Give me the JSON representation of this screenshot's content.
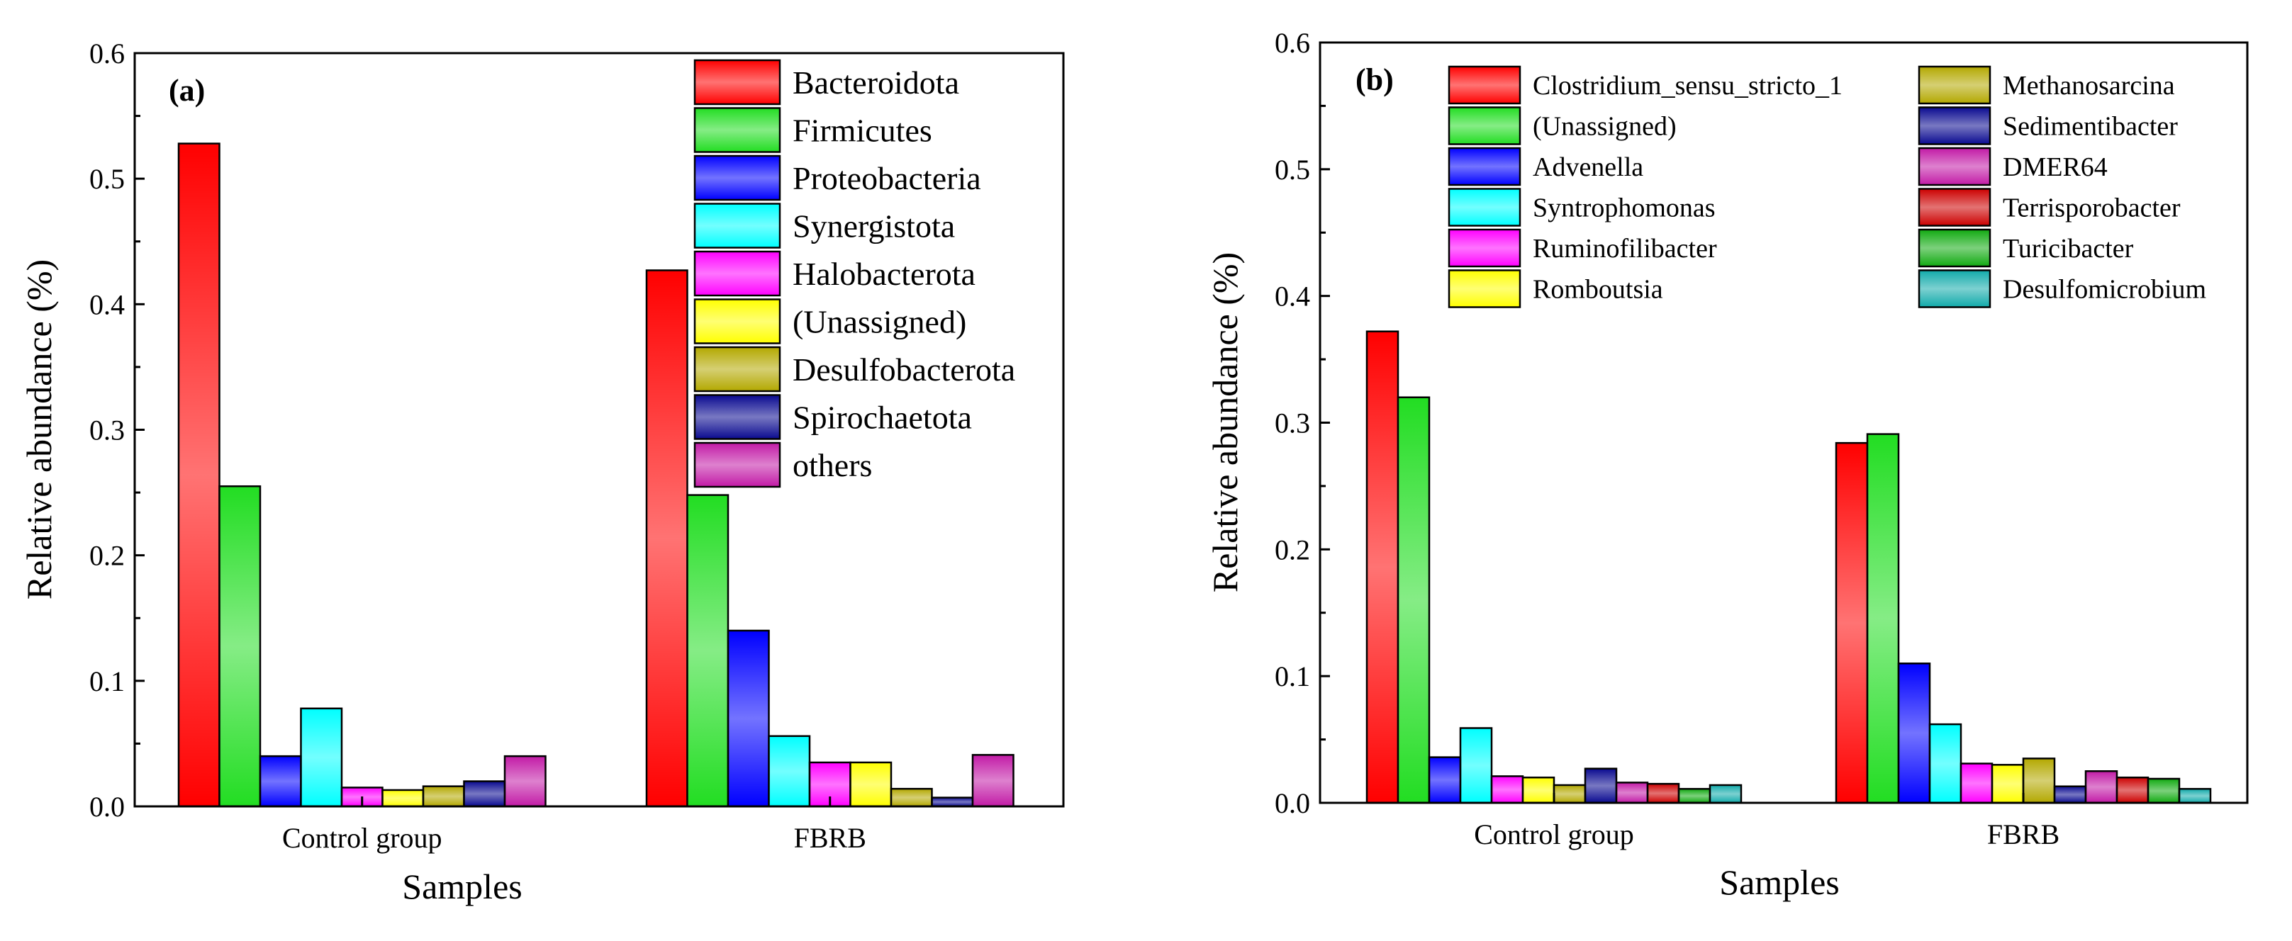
{
  "chart_data": [
    {
      "type": "bar",
      "panel": "(a)",
      "categories": [
        "Control group",
        "FBRB"
      ],
      "xlabel": "Samples",
      "ylabel": "Relative abundance (%)",
      "ylim": [
        0,
        0.6
      ],
      "yticks": [
        "0.0",
        "0.1",
        "0.2",
        "0.3",
        "0.4",
        "0.5",
        "0.6"
      ],
      "legend_position": "top-right",
      "legend_columns": 1,
      "series": [
        {
          "name": "Bacteroidota",
          "color": "#ff0000",
          "values": [
            0.528,
            0.427
          ]
        },
        {
          "name": "Firmicutes",
          "color": "#22dd22",
          "values": [
            0.255,
            0.248
          ]
        },
        {
          "name": "Proteobacteria",
          "color": "#0000ff",
          "values": [
            0.04,
            0.14
          ]
        },
        {
          "name": "Synergistota",
          "color": "#00ffff",
          "values": [
            0.078,
            0.056
          ]
        },
        {
          "name": "Halobacterota",
          "color": "#ff00ff",
          "values": [
            0.015,
            0.035
          ]
        },
        {
          "name": "(Unassigned)",
          "color": "#ffff00",
          "values": [
            0.013,
            0.035
          ]
        },
        {
          "name": "Desulfobacterota",
          "color": "#b3a800",
          "values": [
            0.016,
            0.014
          ]
        },
        {
          "name": "Spirochaetota",
          "color": "#0a0a90",
          "values": [
            0.02,
            0.007
          ]
        },
        {
          "name": "others",
          "color": "#c21aa6",
          "values": [
            0.04,
            0.041
          ]
        }
      ]
    },
    {
      "type": "bar",
      "panel": "(b)",
      "categories": [
        "Control group",
        "FBRB"
      ],
      "xlabel": "Samples",
      "ylabel": "Relative abundance (%)",
      "ylim": [
        0,
        0.6
      ],
      "yticks": [
        "0.0",
        "0.1",
        "0.2",
        "0.3",
        "0.4",
        "0.5",
        "0.6"
      ],
      "legend_position": "top",
      "legend_columns": 2,
      "series": [
        {
          "name": "Clostridium_sensu_stricto_1",
          "color": "#ff0000",
          "values": [
            0.372,
            0.284
          ]
        },
        {
          "name": "(Unassigned)",
          "color": "#22dd22",
          "values": [
            0.32,
            0.291
          ]
        },
        {
          "name": "Advenella",
          "color": "#0000ff",
          "values": [
            0.036,
            0.11
          ]
        },
        {
          "name": "Syntrophomonas",
          "color": "#00ffff",
          "values": [
            0.059,
            0.062
          ]
        },
        {
          "name": "Ruminofilibacter",
          "color": "#ff00ff",
          "values": [
            0.021,
            0.031
          ]
        },
        {
          "name": "Romboutsia",
          "color": "#ffff00",
          "values": [
            0.02,
            0.03
          ]
        },
        {
          "name": "Methanosarcina",
          "color": "#b3a800",
          "values": [
            0.014,
            0.035
          ]
        },
        {
          "name": "Sedimentibacter",
          "color": "#0a0a90",
          "values": [
            0.027,
            0.013
          ]
        },
        {
          "name": "DMER64",
          "color": "#c21aa6",
          "values": [
            0.016,
            0.025
          ]
        },
        {
          "name": "Terrisporobacter",
          "color": "#cc0000",
          "values": [
            0.015,
            0.02
          ]
        },
        {
          "name": "Turicibacter",
          "color": "#11aa11",
          "values": [
            0.011,
            0.019
          ]
        },
        {
          "name": "Desulfomicrobium",
          "color": "#11aaaa",
          "values": [
            0.014,
            0.011
          ]
        }
      ]
    }
  ]
}
